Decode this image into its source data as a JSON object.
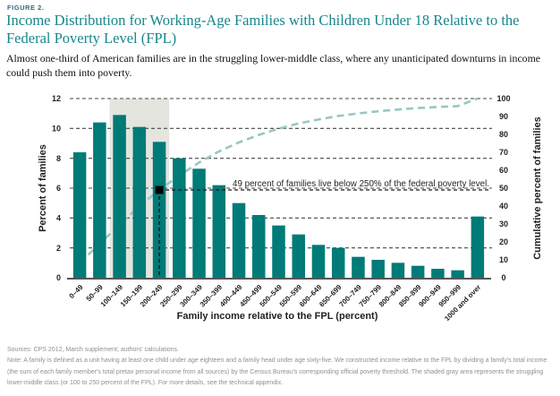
{
  "header": {
    "figure_label": "FIGURE 2.",
    "title_lines": [
      "Income Distribution for Working-Age Families with Children Under 18 Relative to the",
      "Federal Poverty Level (FPL)"
    ],
    "subtitle_lines": [
      "Almost one-third of American families are in the struggling lower-middle class, where any unanticipated downturns in income",
      "could push them into poverty."
    ]
  },
  "chart_data": {
    "type": "bar",
    "title": "Income Distribution for Working-Age Families with Children Under 18 Relative to the Federal Poverty Level (FPL)",
    "categories": [
      "0–49",
      "50–99",
      "100–149",
      "150–199",
      "200–249",
      "250–299",
      "300–349",
      "350–399",
      "400–449",
      "450–499",
      "500–549",
      "550–599",
      "600–649",
      "650–699",
      "700–749",
      "750–799",
      "800–849",
      "850–899",
      "900–949",
      "950–999",
      "1000 and over"
    ],
    "series": [
      {
        "name": "Percent of families",
        "type": "bar",
        "axis": "left",
        "values": [
          8.4,
          10.4,
          10.9,
          10.1,
          9.1,
          8.0,
          7.3,
          6.2,
          5.0,
          4.2,
          3.5,
          2.9,
          2.2,
          2.0,
          1.4,
          1.2,
          1.0,
          0.8,
          0.6,
          0.5,
          4.1
        ]
      },
      {
        "name": "Cumulative percent of families",
        "type": "line",
        "style": "dashed",
        "axis": "right",
        "values": [
          8.4,
          18.8,
          29.7,
          39.8,
          49.0,
          57.0,
          64.3,
          70.5,
          75.5,
          79.7,
          83.2,
          86.1,
          88.3,
          90.3,
          91.7,
          92.9,
          93.9,
          94.7,
          95.3,
          95.8,
          100
        ]
      }
    ],
    "xlabel": "Family income relative to the FPL (percent)",
    "ylabel_left": "Percent of families",
    "ylabel_right": "Cumulative percent of families",
    "ylim_left": [
      0,
      12
    ],
    "ytick_step_left": 2,
    "ylim_right": [
      0,
      100
    ],
    "ytick_step_right": 10,
    "grid": "horizontal-dashed",
    "legend": "none",
    "shaded_region": {
      "from_category_index": 2,
      "to_category_index": 4,
      "label": "struggling lower-middle class (100 to 250 percent of the FPL)",
      "color": "#e5e5e0"
    },
    "annotation": {
      "text": "49 percent of families live below 250% of the federal poverty level.",
      "marker_category_index": 4,
      "marker_value_right": 49
    },
    "colors": {
      "bar": "#007b77",
      "cumulative_line": "#98c7c4",
      "marker": "#000000",
      "gridline": "#454545",
      "axis_text": "#231f20",
      "baseline": "#55565a"
    }
  },
  "notes": {
    "lines": [
      "Sources: CPS 2012, March supplement; authors' calculations.",
      "Note: A family is defined as a unit having at least one child under age eighteen and a family head under age sixty-five. We constructed income relative to the FPL by dividing a family's total income",
      "(the sum of each family member's total pretax personal income from all sources) by the Census Bureau's corresponding official poverty threshold. The shaded gray area represents the struggling",
      "lower-middle class (or 100 to 250 percent of the FPL). For more details, see the technical appendix."
    ]
  }
}
